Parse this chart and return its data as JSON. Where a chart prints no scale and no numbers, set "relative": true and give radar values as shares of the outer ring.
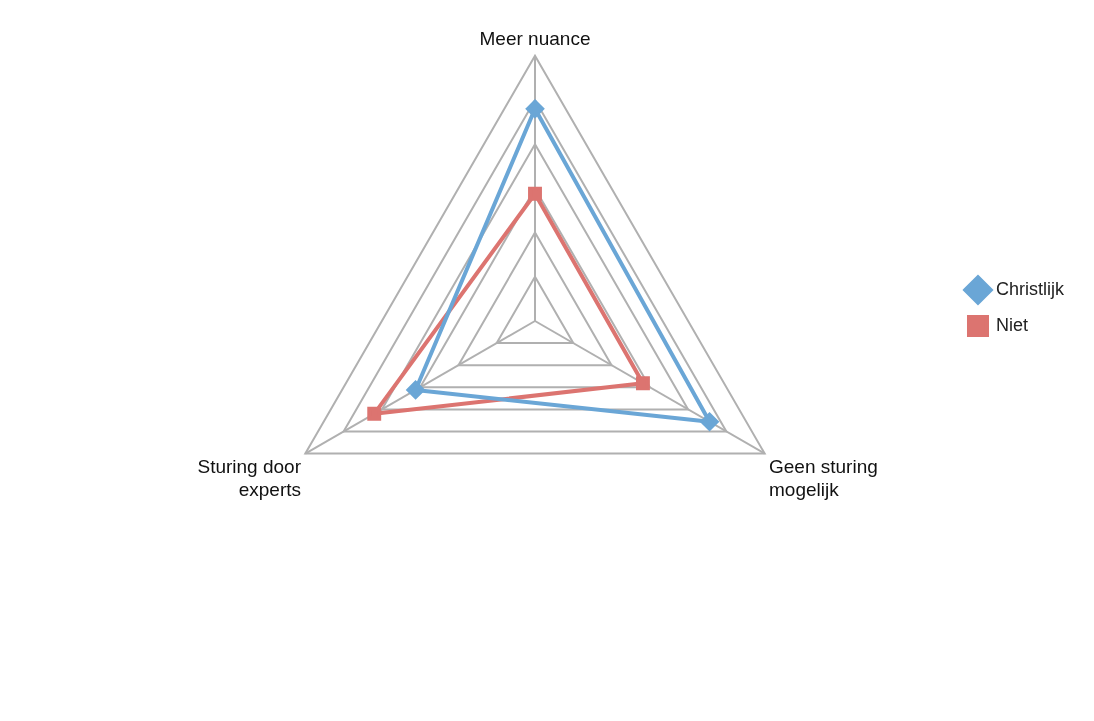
{
  "chart_data": {
    "type": "radar",
    "relative": true,
    "categories": [
      "Meer nuance",
      "Geen sturing mogelijk",
      "Sturing door experts"
    ],
    "legend": "right",
    "grid": true,
    "line_style": "solid",
    "series": [
      {
        "name": "Christlijk",
        "color": "#6aa6d6",
        "marker": "diamond",
        "values": [
          0.8,
          0.76,
          0.52
        ]
      },
      {
        "name": "Niet",
        "color": "#dc7470",
        "marker": "square",
        "values": [
          0.48,
          0.47,
          0.7
        ]
      }
    ]
  }
}
